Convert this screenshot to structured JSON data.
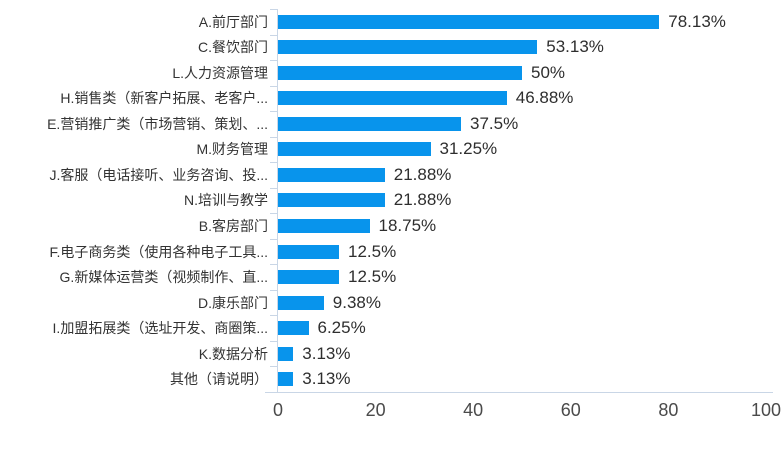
{
  "chart_data": {
    "type": "bar",
    "orientation": "horizontal",
    "categories": [
      "A.前厅部门",
      "C.餐饮部门",
      "L.人力资源管理",
      "H.销售类（新客户拓展、老客户...",
      "E.营销推广类（市场营销、策划、...",
      "M.财务管理",
      "J.客服（电话接听、业务咨询、投...",
      "N.培训与教学",
      "B.客房部门",
      "F.电子商务类（使用各种电子工具...",
      "G.新媒体运营类（视频制作、直...",
      "D.康乐部门",
      "I.加盟拓展类（选址开发、商圈策...",
      "K.数据分析",
      "其他（请说明）"
    ],
    "values": [
      78.13,
      53.13,
      50,
      46.88,
      37.5,
      31.25,
      21.88,
      21.88,
      18.75,
      12.5,
      12.5,
      9.38,
      6.25,
      3.13,
      3.13
    ],
    "value_labels": [
      "78.13%",
      "53.13%",
      "50%",
      "46.88%",
      "37.5%",
      "31.25%",
      "21.88%",
      "21.88%",
      "18.75%",
      "12.5%",
      "12.5%",
      "9.38%",
      "6.25%",
      "3.13%",
      "3.13%"
    ],
    "x_ticks": [
      "0",
      "20",
      "40",
      "60",
      "80",
      "100"
    ],
    "x_tick_values": [
      0,
      20,
      40,
      60,
      80,
      100
    ],
    "xlim": [
      0,
      100
    ],
    "bar_color": "#0894ec",
    "axis_line_color": "#c9d6e6",
    "category_label_color": "#333333",
    "value_label_color": "#2e2e2e",
    "axis_label_color": "#4a4a4a",
    "grid": false,
    "legend": false
  }
}
